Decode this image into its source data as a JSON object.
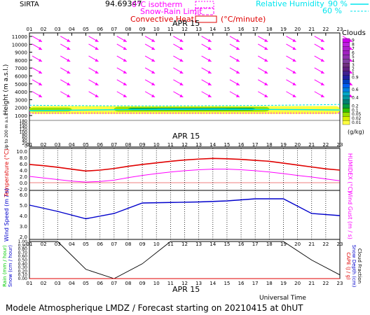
{
  "header": {
    "site": "SIRTA",
    "number": "94.69347",
    "legend_0c": "0°C isotherm",
    "legend_snow": "Snow-Rain Limit",
    "legend_conv": "Convective Heat.",
    "legend_conv_unit": "(°C/minute)",
    "legend_rh": "Relative Humidity",
    "rh_90": "90 %",
    "rh_60": "60 %"
  },
  "footer": "Modele Atmospherique LMDZ / Forecast starting on 20210415 at 0hUT",
  "date_label": "APR 15",
  "universal_time": "Universal Time",
  "colors": {
    "magenta": "#ff00ff",
    "cyan": "#00e5ee",
    "red": "#e00000",
    "blue": "#0000cc",
    "black": "#000000"
  },
  "chart_data": [
    {
      "type": "heatmap",
      "title": "Clouds",
      "ylabel": "Height (m a.s.l.)",
      "ylabel_lower": "Up to 200 m a.s.l.",
      "x": [
        "01",
        "02",
        "03",
        "04",
        "05",
        "06",
        "07",
        "08",
        "09",
        "10",
        "11",
        "12",
        "13",
        "14",
        "15",
        "16",
        "17",
        "18",
        "19",
        "20",
        "21",
        "22",
        "23"
      ],
      "y_ticks": [
        1000,
        2000,
        3000,
        4000,
        5000,
        6000,
        7000,
        8000,
        9000,
        10000,
        11000
      ],
      "y_ticks_lower": [
        0,
        20,
        40,
        60,
        80,
        100,
        120,
        140,
        160,
        180
      ],
      "colorbar": {
        "label": "(g/kg)",
        "ticks": [
          "0.01",
          "0.02",
          "0.05",
          "0.1",
          "0.2",
          "0.3",
          "0.4",
          "0.5",
          "0.6",
          "0.7",
          "0.8",
          "0.9",
          "1",
          "2",
          "3",
          "4",
          "5",
          "6",
          "7",
          "8",
          "9"
        ],
        "colors": [
          "#ffff40",
          "#d8f000",
          "#98e000",
          "#30c000",
          "#009a40",
          "#008070",
          "#0098a0",
          "#00a8c8",
          "#0080e0",
          "#0060f0",
          "#0040c0",
          "#2020a0",
          "#402090",
          "#602080",
          "#703080",
          "#8040a0",
          "#9030b0",
          "#a020c0",
          "#b020d0",
          "#c020e0",
          "#d000f0"
        ]
      },
      "wind_arrow_levels_m": [
        10500,
        9500,
        8000,
        6500,
        5000,
        3500
      ],
      "cloud_layer_m": [
        1200,
        2200
      ]
    },
    {
      "type": "line",
      "ylabel": "Temperature (°C)",
      "ylabel_right": "HUMIDEX (°C)",
      "ylim": [
        -2,
        10
      ],
      "y_ticks": [
        "-2.0",
        "0.0",
        "2.0",
        "4.0",
        "6.0",
        "8.0",
        "10.0"
      ],
      "x": [
        "01",
        "02",
        "03",
        "04",
        "05",
        "06",
        "07",
        "08",
        "09",
        "10",
        "11",
        "12",
        "13",
        "14",
        "15",
        "16",
        "17",
        "18",
        "19",
        "20",
        "21",
        "22",
        "23"
      ],
      "series": [
        {
          "name": "Temperature",
          "color": "#e00000",
          "values": [
            5.8,
            5.4,
            4.9,
            4.3,
            3.7,
            4.0,
            4.5,
            5.2,
            5.8,
            6.3,
            6.8,
            7.2,
            7.5,
            7.7,
            7.6,
            7.4,
            7.1,
            6.8,
            6.2,
            5.6,
            5.0,
            4.4,
            4.0
          ]
        },
        {
          "name": "HUMIDEX",
          "color": "#ff00ff",
          "values": [
            2.0,
            1.5,
            1.0,
            0.5,
            0.2,
            0.4,
            0.8,
            1.6,
            2.3,
            2.9,
            3.4,
            3.8,
            4.1,
            4.3,
            4.3,
            4.1,
            3.8,
            3.4,
            2.9,
            2.3,
            1.8,
            1.2,
            0.6
          ]
        }
      ]
    },
    {
      "type": "line",
      "ylabel": "Wind Speed (m / s)",
      "ylabel_right": "Wind Gust (m / s)",
      "ylim": [
        2,
        6
      ],
      "y_ticks": [
        "2.0",
        "3.0",
        "4.0",
        "5.0",
        "6.0"
      ],
      "x": [
        "01",
        "03",
        "05",
        "07",
        "09",
        "11",
        "13",
        "15",
        "17",
        "19",
        "21",
        "23"
      ],
      "series": [
        {
          "name": "Wind Speed",
          "color": "#0000cc",
          "values": [
            5.0,
            4.4,
            3.7,
            4.2,
            5.2,
            5.25,
            5.3,
            5.4,
            5.6,
            5.6,
            4.2,
            4.0
          ]
        }
      ]
    },
    {
      "type": "line",
      "ylabel": "Rain (mm / hour)",
      "ylabel_2": "Snow (cm / hour)",
      "ylabel_right": "CAPE (J / g)",
      "ylabel_right_2": "Snow Depth (cm)",
      "ylabel_right_3": "Cloud Fraction",
      "ylim": [
        0,
        1
      ],
      "y_ticks": [
        "0.00",
        "0.10",
        "0.20",
        "0.30",
        "0.40",
        "0.50",
        "0.60",
        "0.70",
        "0.80",
        "0.90",
        "1.00"
      ],
      "x": [
        "01",
        "03",
        "05",
        "07",
        "09",
        "11",
        "13",
        "15",
        "17",
        "19",
        "21",
        "23"
      ],
      "series": [
        {
          "name": "Cloud Fraction",
          "color": "#000000",
          "values": [
            1.0,
            1.0,
            0.25,
            0.0,
            0.4,
            1.0,
            1.0,
            1.0,
            1.0,
            1.0,
            0.5,
            0.1
          ]
        },
        {
          "name": "Rain",
          "color": "#00cc00",
          "values": [
            0,
            0,
            0,
            0,
            0,
            0,
            0,
            0,
            0,
            0,
            0,
            0
          ]
        },
        {
          "name": "CAPE",
          "color": "#e00000",
          "values": [
            0,
            0,
            0,
            0,
            0,
            0,
            0,
            0,
            0,
            0,
            0,
            0
          ]
        }
      ]
    }
  ]
}
